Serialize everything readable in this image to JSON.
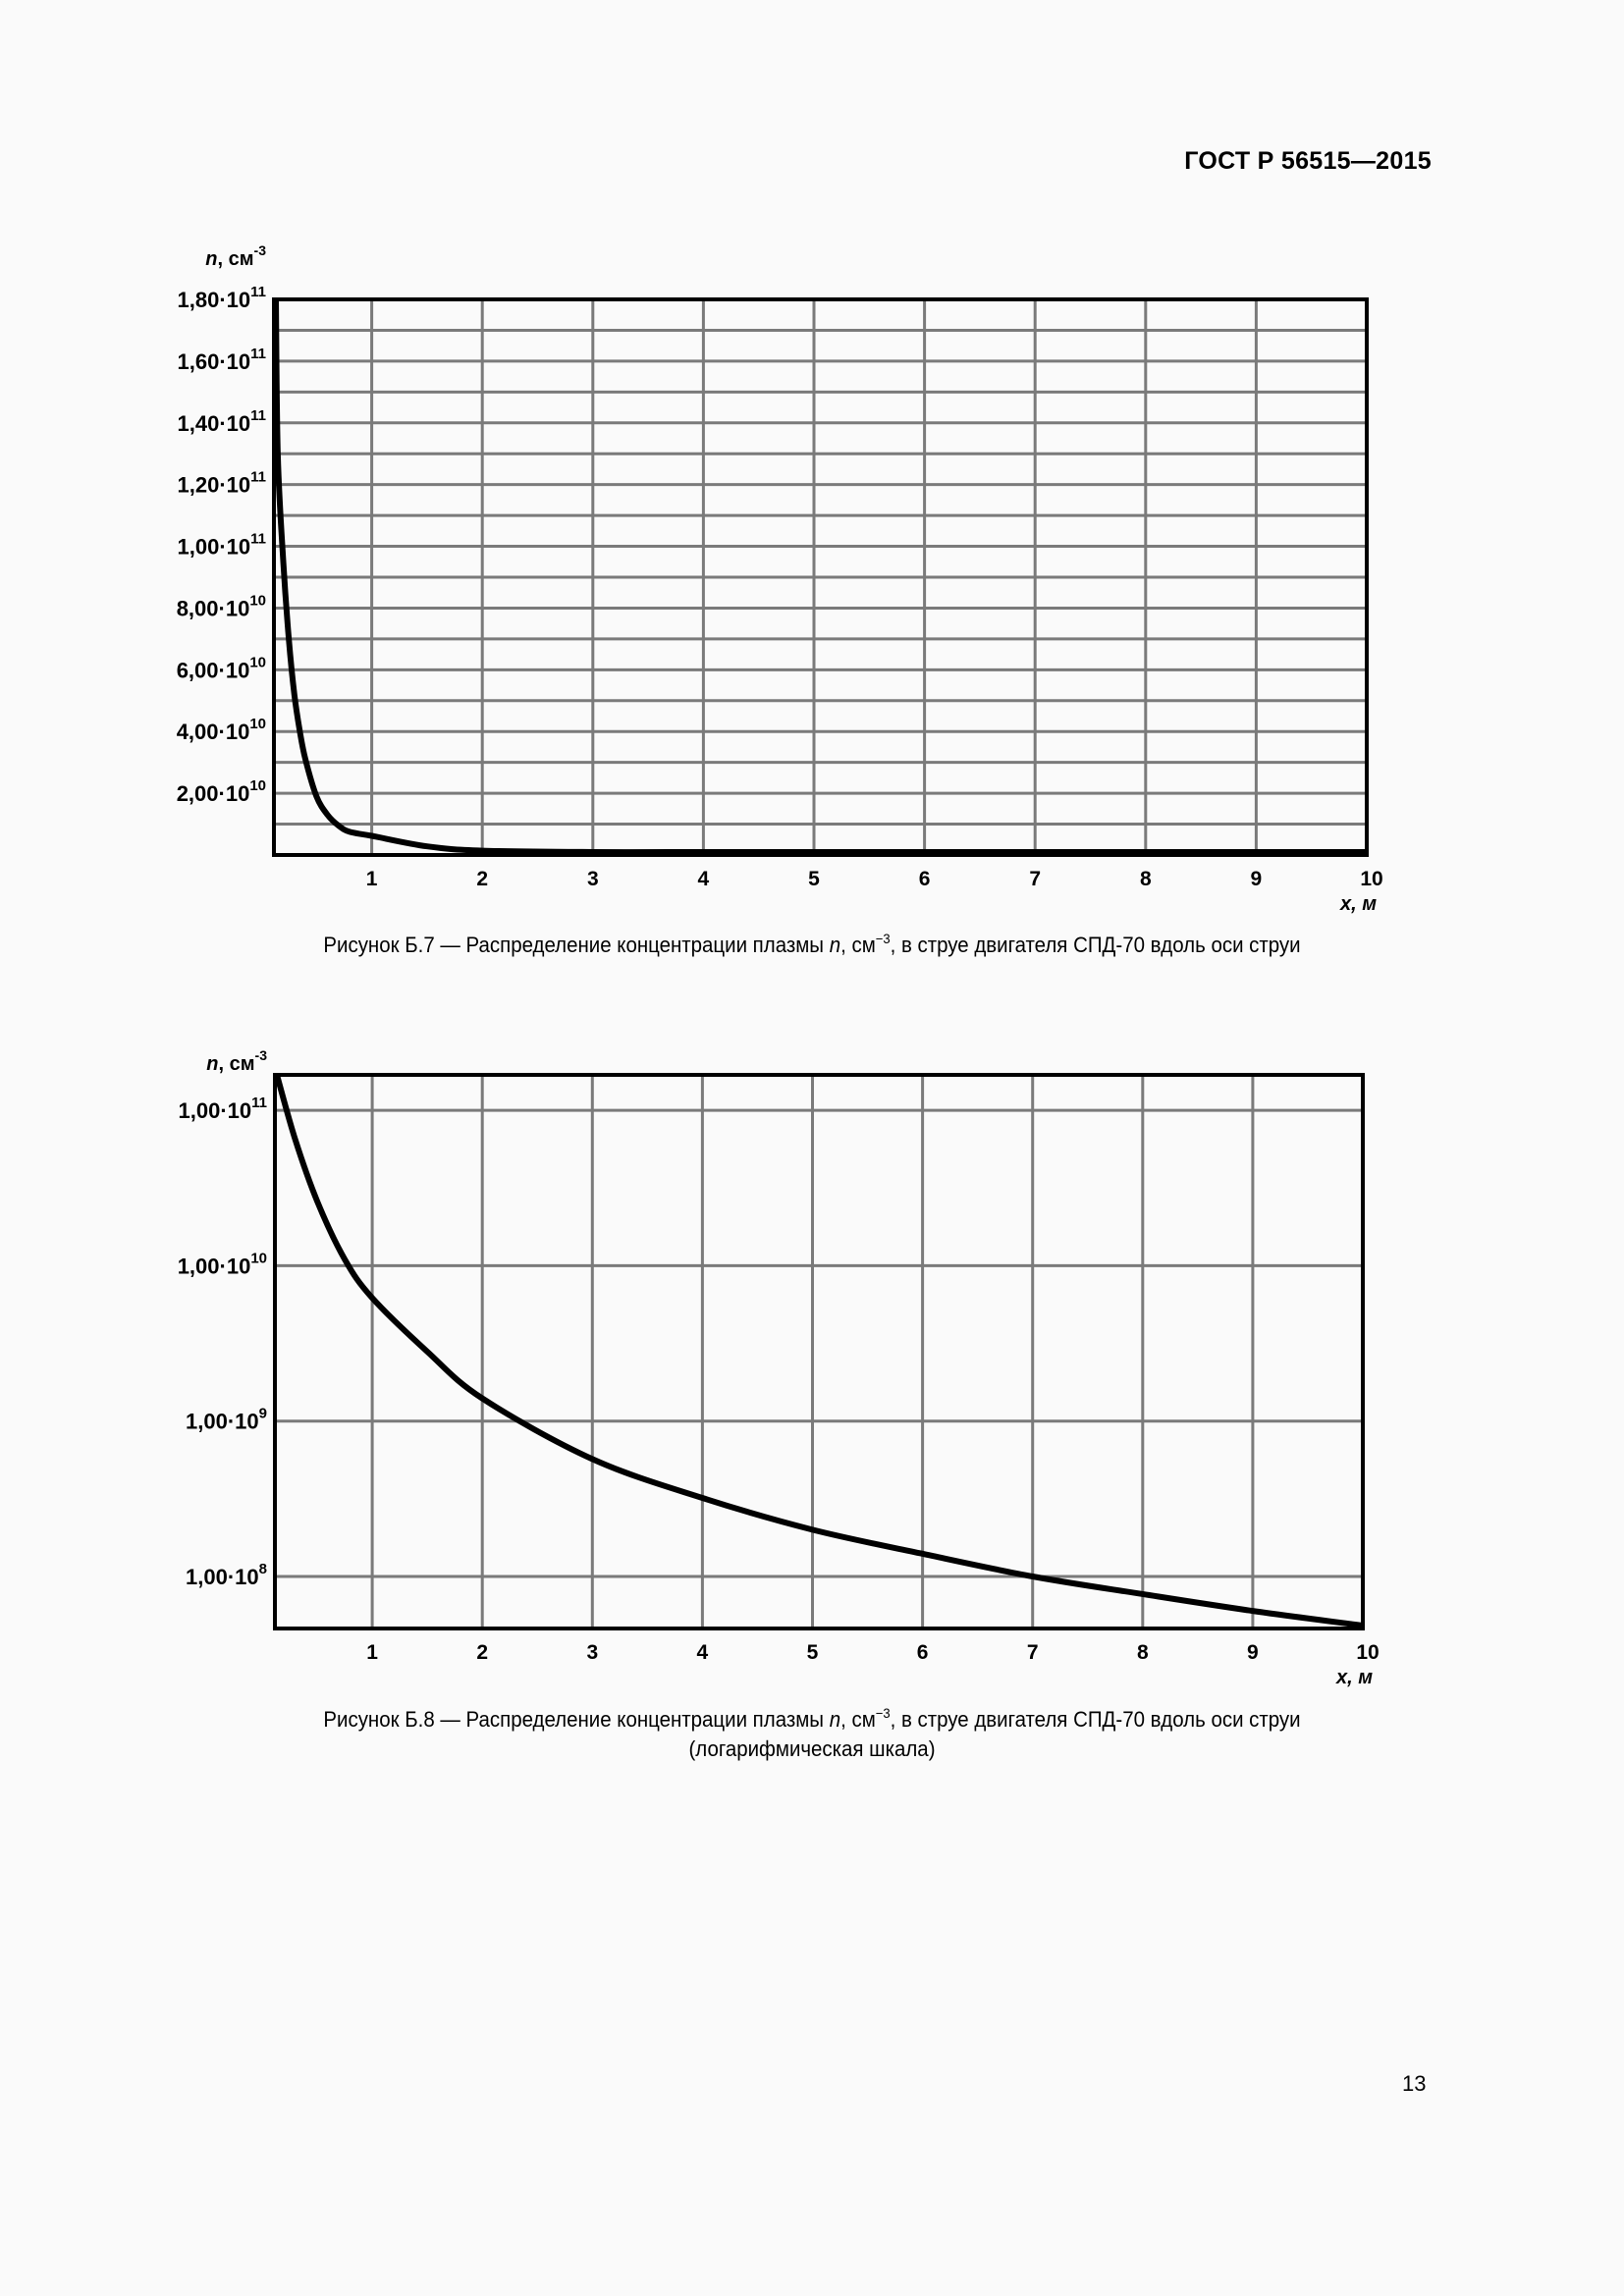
{
  "document": {
    "standard_code": "ГОСТ Р 56515—2015",
    "page_number": "13"
  },
  "figures": [
    {
      "id": "fig-b7",
      "y_axis_label_var": "n",
      "y_axis_label_unit": ", см",
      "y_axis_label_exp": "-3",
      "x_axis_label": "x, м",
      "caption_prefix": "Рисунок Б.7 — Распределение концентрации плазмы ",
      "caption_var": "n",
      "caption_unit": ", см",
      "caption_exp": "−3",
      "caption_suffix": ", в струе двигателя СПД-70 вдоль оси струи",
      "caption_line2": ""
    },
    {
      "id": "fig-b8",
      "y_axis_label_var": "n",
      "y_axis_label_unit": ", см",
      "y_axis_label_exp": "-3",
      "x_axis_label": "x, м",
      "caption_prefix": "Рисунок Б.8 — Распределение концентрации плазмы ",
      "caption_var": "n",
      "caption_unit": ", см",
      "caption_exp": "−3",
      "caption_suffix": ", в струе двигателя СПД-70 вдоль оси струи",
      "caption_line2": "(логарифмическая шкала)"
    }
  ],
  "chart_data": [
    {
      "type": "line",
      "title": "Рисунок Б.7 — Распределение концентрации плазмы n, см−3, в струе двигателя СПД-70 вдоль оси струи",
      "xlabel": "x, м",
      "ylabel": "n, см-3",
      "xlim": [
        0.1,
        10
      ],
      "ylim": [
        0,
        180000000000.0
      ],
      "y_scale": "linear",
      "grid": true,
      "x_ticks": [
        "1",
        "2",
        "3",
        "4",
        "5",
        "6",
        "7",
        "8",
        "9",
        "10"
      ],
      "y_ticks": [
        {
          "mant": "2,00·10",
          "exp": "10",
          "value": 20000000000.0
        },
        {
          "mant": "4,00·10",
          "exp": "10",
          "value": 40000000000.0
        },
        {
          "mant": "6,00·10",
          "exp": "10",
          "value": 60000000000.0
        },
        {
          "mant": "8,00·10",
          "exp": "10",
          "value": 80000000000.0
        },
        {
          "mant": "1,00·10",
          "exp": "11",
          "value": 100000000000.0
        },
        {
          "mant": "1,20·10",
          "exp": "11",
          "value": 120000000000.0
        },
        {
          "mant": "1,40·10",
          "exp": "11",
          "value": 140000000000.0
        },
        {
          "mant": "1,60·10",
          "exp": "11",
          "value": 160000000000.0
        },
        {
          "mant": "1,80·10",
          "exp": "11",
          "value": 180000000000.0
        }
      ],
      "minor_y_gridlines": [
        10000000000.0,
        30000000000.0,
        50000000000.0,
        70000000000.0,
        90000000000.0,
        110000000000.0,
        130000000000.0,
        150000000000.0,
        170000000000.0
      ],
      "series": [
        {
          "name": "n(x)",
          "x": [
            0.1,
            0.15,
            0.2,
            0.25,
            0.3,
            0.35,
            0.4,
            0.5,
            0.6,
            0.7,
            0.8,
            1.0,
            1.5,
            2.0,
            3.0,
            4.0,
            5.0,
            6.0,
            7.0,
            8.0,
            9.0,
            10.0
          ],
          "values": [
            180000000000.0,
            130000000000.0,
            95000000000.0,
            70000000000.0,
            52000000000.0,
            40000000000.0,
            31000000000.0,
            19000000000.0,
            13000000000.0,
            9500000000.0,
            7500000000.0,
            6200000000.0,
            2800000000.0,
            1400000000.0,
            570000000.0,
            320000000.0,
            200000000.0,
            140000000.0,
            100000000.0,
            77000000.0,
            60000000.0,
            48000000.0
          ]
        }
      ]
    },
    {
      "type": "line",
      "title": "Рисунок Б.8 — Распределение концентрации плазмы n, см−3, в струе двигателя СПД-70 вдоль оси струи (логарифмическая шкала)",
      "xlabel": "x, м",
      "ylabel": "n, см-3",
      "xlim": [
        0.1,
        10
      ],
      "ylim": [
        45000000.0,
        175000000000.0
      ],
      "y_scale": "log",
      "grid": true,
      "x_ticks": [
        "1",
        "2",
        "3",
        "4",
        "5",
        "6",
        "7",
        "8",
        "9",
        "10"
      ],
      "y_ticks": [
        {
          "mant": "1,00·10",
          "exp": "8",
          "value": 100000000.0
        },
        {
          "mant": "1,00·10",
          "exp": "9",
          "value": 1000000000.0
        },
        {
          "mant": "1,00·10",
          "exp": "10",
          "value": 10000000000.0
        },
        {
          "mant": "1,00·10",
          "exp": "11",
          "value": 100000000000.0
        }
      ],
      "series": [
        {
          "name": "n(x)",
          "x": [
            0.1,
            0.3,
            0.5,
            0.75,
            1.0,
            1.5,
            2.0,
            3.0,
            4.0,
            5.0,
            6.0,
            7.0,
            8.0,
            9.0,
            10.0
          ],
          "values": [
            175000000000.0,
            65000000000.0,
            26000000000.0,
            11000000000.0,
            6200000000.0,
            2800000000.0,
            1400000000.0,
            570000000.0,
            320000000.0,
            200000000.0,
            140000000.0,
            100000000.0,
            77000000.0,
            60000000.0,
            48000000.0
          ]
        }
      ]
    }
  ]
}
